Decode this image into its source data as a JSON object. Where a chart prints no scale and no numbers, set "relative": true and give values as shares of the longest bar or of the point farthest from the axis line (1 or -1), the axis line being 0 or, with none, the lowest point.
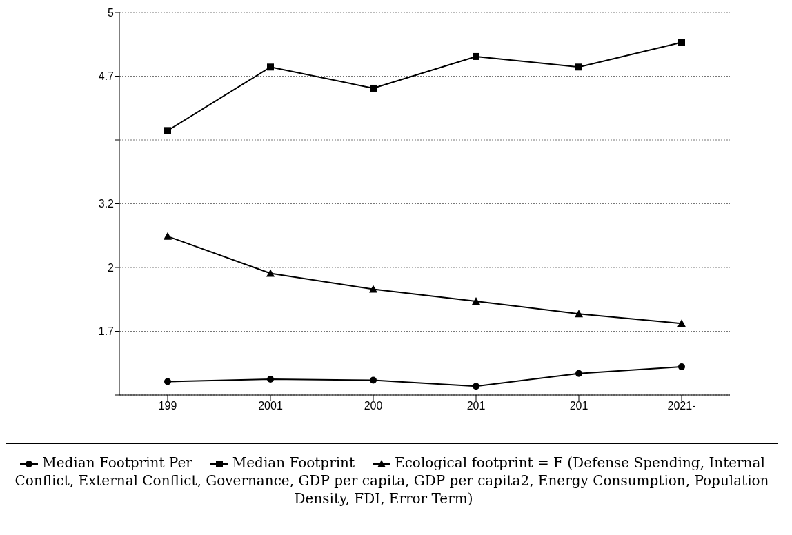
{
  "chart_data": {
    "type": "line",
    "categories": [
      "199",
      "2001",
      "200",
      "201",
      "201",
      "2021-"
    ],
    "series": [
      {
        "name": "Median Footprint Per",
        "color": "#000000",
        "marker": "circle",
        "values": [
          0.038,
          0.045,
          0.042,
          0.025,
          0.061,
          0.08
        ]
      },
      {
        "name": "Median Footprint",
        "color": "#000000",
        "marker": "square",
        "values": [
          0.75,
          0.93,
          0.87,
          0.96,
          0.93,
          1
        ]
      },
      {
        "name": "Ecological footprint = F (Defense Spending, Internal Conflict, External Conflict, Governance, GDP per capita, GDP per capita2, Energy Consumption, Population Density, FDI, Error Term)",
        "color": "#000000",
        "marker": "triangle",
        "values": [
          0.45,
          0.345,
          0.3,
          0.266,
          0.23,
          0.203
        ]
      }
    ],
    "relative": true,
    "annotations": [
      "5",
      "4.7",
      "3.2",
      "2",
      "1.7"
    ],
    "grid": "y",
    "legend": "bottom",
    "line_style": "solid"
  }
}
